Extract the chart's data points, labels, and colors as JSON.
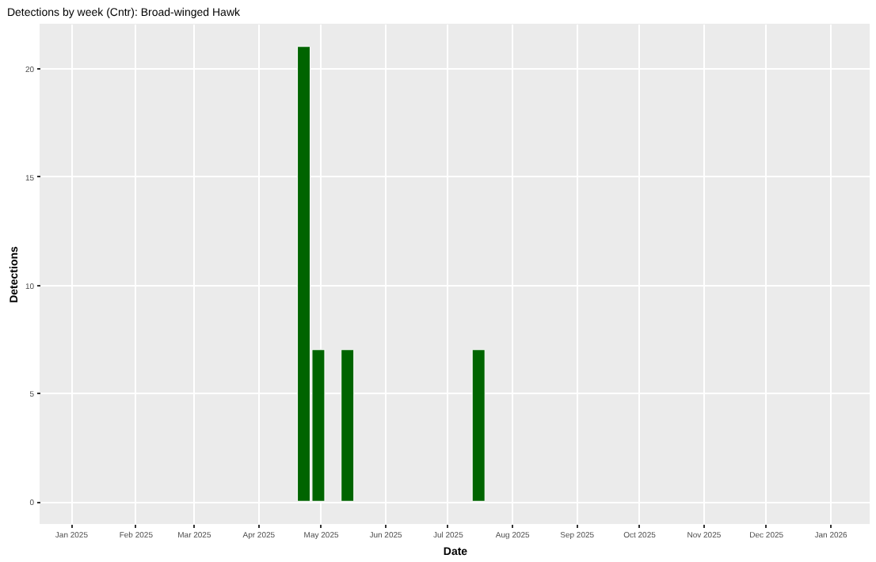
{
  "chart_data": {
    "type": "bar",
    "title": "Detections by week (Cntr): Broad-winged Hawk",
    "xlabel": "Date",
    "ylabel": "Detections",
    "x": [
      "2025-04-23",
      "2025-04-30",
      "2025-05-14",
      "2025-07-16"
    ],
    "series": [
      {
        "color": "#006400",
        "values": [
          21,
          7,
          7,
          7
        ]
      }
    ],
    "xlim": [
      "2024-12-17",
      "2026-01-20"
    ],
    "xticks": [
      {
        "value": "2025-01-01",
        "label": "Jan 2025"
      },
      {
        "value": "2025-02-01",
        "label": "Feb 2025"
      },
      {
        "value": "2025-03-01",
        "label": "Mar 2025"
      },
      {
        "value": "2025-04-01",
        "label": "Apr 2025"
      },
      {
        "value": "2025-05-01",
        "label": "May 2025"
      },
      {
        "value": "2025-06-01",
        "label": "Jun 2025"
      },
      {
        "value": "2025-07-01",
        "label": "Jul 2025"
      },
      {
        "value": "2025-08-01",
        "label": "Aug 2025"
      },
      {
        "value": "2025-09-01",
        "label": "Sep 2025"
      },
      {
        "value": "2025-10-01",
        "label": "Oct 2025"
      },
      {
        "value": "2025-11-01",
        "label": "Nov 2025"
      },
      {
        "value": "2025-12-01",
        "label": "Dec 2025"
      },
      {
        "value": "2026-01-01",
        "label": "Jan 2026"
      }
    ],
    "ylim": [
      -1.05,
      22.05
    ],
    "yticks": [
      0,
      5,
      10,
      15,
      20
    ],
    "grid": true
  }
}
